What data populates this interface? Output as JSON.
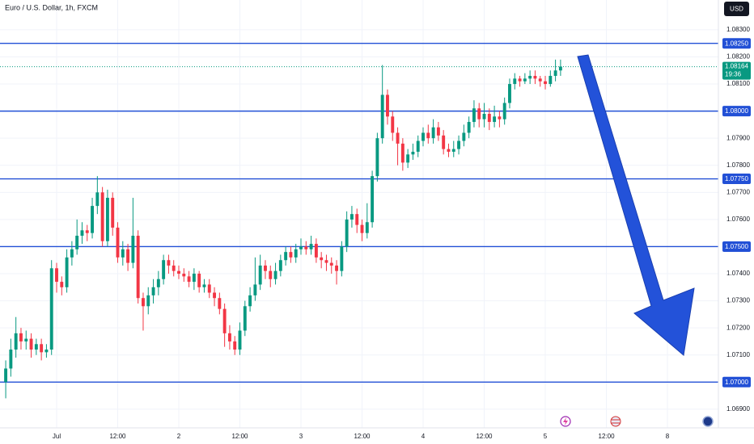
{
  "chart_data": {
    "type": "candlestick",
    "title": "Euro / U.S. Dollar, 1h, FXCM",
    "currency_button": "USD",
    "up_color": "#089981",
    "down_color": "#f23645",
    "level_color": "#2250d6",
    "grid": true,
    "xlim": [
      -1.126,
      140.01
    ],
    "ylim": [
      1.06831,
      1.0841
    ],
    "xticks": [
      {
        "value": 10,
        "label": "Jul"
      },
      {
        "value": 22,
        "label": "12:00"
      },
      {
        "value": 34,
        "label": "2"
      },
      {
        "value": 46,
        "label": "12:00"
      },
      {
        "value": 58,
        "label": "3"
      },
      {
        "value": 70,
        "label": "12:00"
      },
      {
        "value": 82,
        "label": "4"
      },
      {
        "value": 94,
        "label": "12:00"
      },
      {
        "value": 106,
        "label": "5"
      },
      {
        "value": 118,
        "label": "12:00"
      },
      {
        "value": 130,
        "label": "8"
      }
    ],
    "yticks": [
      {
        "value": 1.083,
        "label": "1.08300"
      },
      {
        "value": 1.082,
        "label": "1.08200"
      },
      {
        "value": 1.081,
        "label": "1.08100"
      },
      {
        "value": 1.079,
        "label": "1.07900"
      },
      {
        "value": 1.078,
        "label": "1.07800"
      },
      {
        "value": 1.077,
        "label": "1.07700"
      },
      {
        "value": 1.076,
        "label": "1.07600"
      },
      {
        "value": 1.074,
        "label": "1.07400"
      },
      {
        "value": 1.073,
        "label": "1.07300"
      },
      {
        "value": 1.072,
        "label": "1.07200"
      },
      {
        "value": 1.071,
        "label": "1.07100"
      },
      {
        "value": 1.069,
        "label": "1.06900"
      }
    ],
    "levels": [
      {
        "value": 1.0825,
        "label": "1.08250"
      },
      {
        "value": 1.08,
        "label": "1.08000"
      },
      {
        "value": 1.0775,
        "label": "1.07750"
      },
      {
        "value": 1.075,
        "label": "1.07500"
      },
      {
        "value": 1.07,
        "label": "1.07000"
      }
    ],
    "last_price": {
      "value": 1.08164,
      "label": "1.08164"
    },
    "countdown": "19:36",
    "open": [
      1.07,
      1.0705,
      1.0712,
      1.0718,
      1.0715,
      1.0716,
      1.0712,
      1.0714,
      1.0711,
      1.0712,
      1.0742,
      1.0737,
      1.0735,
      1.0746,
      1.0749,
      1.0754,
      1.0756,
      1.0755,
      1.0765,
      1.077,
      1.0752,
      1.0768,
      1.0757,
      1.0746,
      1.0749,
      1.0744,
      1.0754,
      1.0731,
      1.0728,
      1.0732,
      1.0735,
      1.0738,
      1.0745,
      1.0743,
      1.0741,
      1.074,
      1.0739,
      1.0737,
      1.074,
      1.0735,
      1.0736,
      1.0733,
      1.0731,
      1.0727,
      1.0718,
      1.0715,
      1.0712,
      1.0719,
      1.0728,
      1.0732,
      1.0736,
      1.0743,
      1.0741,
      1.0738,
      1.0741,
      1.0745,
      1.0748,
      1.0746,
      1.0749,
      1.075,
      1.0749,
      1.0751,
      1.0746,
      1.0745,
      1.0744,
      1.0743,
      1.0741,
      1.075,
      1.076,
      1.0762,
      1.0758,
      1.0755,
      1.0759,
      1.0776,
      1.079,
      1.0806,
      1.0798,
      1.0792,
      1.0788,
      1.0781,
      1.0784,
      1.0785,
      1.0789,
      1.0792,
      1.079,
      1.0794,
      1.0791,
      1.0786,
      1.0785,
      1.0786,
      1.0789,
      1.0792,
      1.0796,
      1.0801,
      1.0797,
      1.0799,
      1.0796,
      1.0798,
      1.0797,
      1.0803,
      1.081,
      1.0812,
      1.0811,
      1.0812,
      1.0813,
      1.0812,
      1.0811,
      1.081,
      1.0813,
      1.0815
    ],
    "high": [
      1.0708,
      1.0716,
      1.0724,
      1.072,
      1.0719,
      1.0718,
      1.0716,
      1.0716,
      1.0714,
      1.0745,
      1.0744,
      1.0739,
      1.0749,
      1.0752,
      1.076,
      1.0759,
      1.0758,
      1.0768,
      1.0776,
      1.0772,
      1.0771,
      1.077,
      1.0759,
      1.0752,
      1.0751,
      1.0768,
      1.0756,
      1.0733,
      1.0735,
      1.0738,
      1.0741,
      1.0747,
      1.0747,
      1.0745,
      1.0743,
      1.0742,
      1.0741,
      1.0742,
      1.0741,
      1.0738,
      1.0738,
      1.0735,
      1.0733,
      1.0729,
      1.0721,
      1.0717,
      1.0722,
      1.073,
      1.0735,
      1.0746,
      1.0747,
      1.0745,
      1.0743,
      1.0744,
      1.0747,
      1.075,
      1.075,
      1.0751,
      1.0753,
      1.0752,
      1.0754,
      1.0753,
      1.0748,
      1.0747,
      1.0746,
      1.0745,
      1.0752,
      1.0763,
      1.0765,
      1.0764,
      1.076,
      1.0766,
      1.0778,
      1.0792,
      1.0817,
      1.0808,
      1.08,
      1.0794,
      1.079,
      1.0786,
      1.0788,
      1.0791,
      1.0794,
      1.0795,
      1.0797,
      1.0796,
      1.0793,
      1.0788,
      1.0789,
      1.0791,
      1.0795,
      1.0798,
      1.0804,
      1.0803,
      1.0803,
      1.0801,
      1.0802,
      1.08,
      1.0805,
      1.0812,
      1.0814,
      1.0813,
      1.0814,
      1.0815,
      1.0815,
      1.0813,
      1.0813,
      1.0815,
      1.0819,
      1.0819
    ],
    "low": [
      1.0694,
      1.0702,
      1.0709,
      1.0712,
      1.0712,
      1.0709,
      1.071,
      1.0708,
      1.0709,
      1.071,
      1.0733,
      1.0732,
      1.0733,
      1.0743,
      1.0747,
      1.0751,
      1.0752,
      1.0753,
      1.0762,
      1.075,
      1.075,
      1.0754,
      1.0744,
      1.0743,
      1.0741,
      1.0742,
      1.0729,
      1.0719,
      1.0725,
      1.0729,
      1.0732,
      1.0736,
      1.074,
      1.0739,
      1.0738,
      1.0737,
      1.0735,
      1.0734,
      1.0733,
      1.0733,
      1.0731,
      1.0728,
      1.0725,
      1.0713,
      1.0712,
      1.071,
      1.071,
      1.0717,
      1.0726,
      1.073,
      1.0734,
      1.0738,
      1.0735,
      1.0736,
      1.0739,
      1.0743,
      1.0744,
      1.0744,
      1.0747,
      1.0747,
      1.0747,
      1.0744,
      1.0742,
      1.0741,
      1.074,
      1.0736,
      1.0739,
      1.0748,
      1.0757,
      1.0755,
      1.0752,
      1.0753,
      1.0757,
      1.0774,
      1.0788,
      1.0795,
      1.0789,
      1.078,
      1.0778,
      1.0779,
      1.0782,
      1.0783,
      1.0787,
      1.0788,
      1.0788,
      1.0789,
      1.0784,
      1.0783,
      1.0783,
      1.0784,
      1.0787,
      1.079,
      1.0794,
      1.0794,
      1.0794,
      1.0793,
      1.0794,
      1.0794,
      1.0795,
      1.0801,
      1.0808,
      1.0809,
      1.081,
      1.081,
      1.081,
      1.0809,
      1.0808,
      1.0809,
      1.0811,
      1.0813
    ],
    "close": [
      1.0705,
      1.0712,
      1.0718,
      1.0715,
      1.0716,
      1.0712,
      1.0714,
      1.0711,
      1.0712,
      1.0742,
      1.0737,
      1.0735,
      1.0746,
      1.0749,
      1.0754,
      1.0756,
      1.0755,
      1.0765,
      1.077,
      1.0752,
      1.0768,
      1.0757,
      1.0746,
      1.0749,
      1.0744,
      1.0754,
      1.0731,
      1.0728,
      1.0732,
      1.0735,
      1.0738,
      1.0745,
      1.0743,
      1.0741,
      1.074,
      1.0739,
      1.0737,
      1.074,
      1.0735,
      1.0736,
      1.0733,
      1.0731,
      1.0727,
      1.0718,
      1.0715,
      1.0712,
      1.0719,
      1.0728,
      1.0732,
      1.0736,
      1.0743,
      1.0741,
      1.0738,
      1.0741,
      1.0745,
      1.0748,
      1.0746,
      1.0749,
      1.075,
      1.0749,
      1.0751,
      1.0746,
      1.0745,
      1.0744,
      1.0743,
      1.0741,
      1.075,
      1.076,
      1.0762,
      1.0758,
      1.0755,
      1.0759,
      1.0776,
      1.079,
      1.0806,
      1.0798,
      1.0792,
      1.0788,
      1.0781,
      1.0784,
      1.0785,
      1.0789,
      1.0792,
      1.079,
      1.0794,
      1.0791,
      1.0786,
      1.0785,
      1.0786,
      1.0789,
      1.0792,
      1.0796,
      1.0801,
      1.0797,
      1.0799,
      1.0796,
      1.0798,
      1.0797,
      1.0803,
      1.081,
      1.0812,
      1.0811,
      1.0812,
      1.0813,
      1.0812,
      1.0811,
      1.081,
      1.0813,
      1.0815,
      1.08164
    ]
  }
}
